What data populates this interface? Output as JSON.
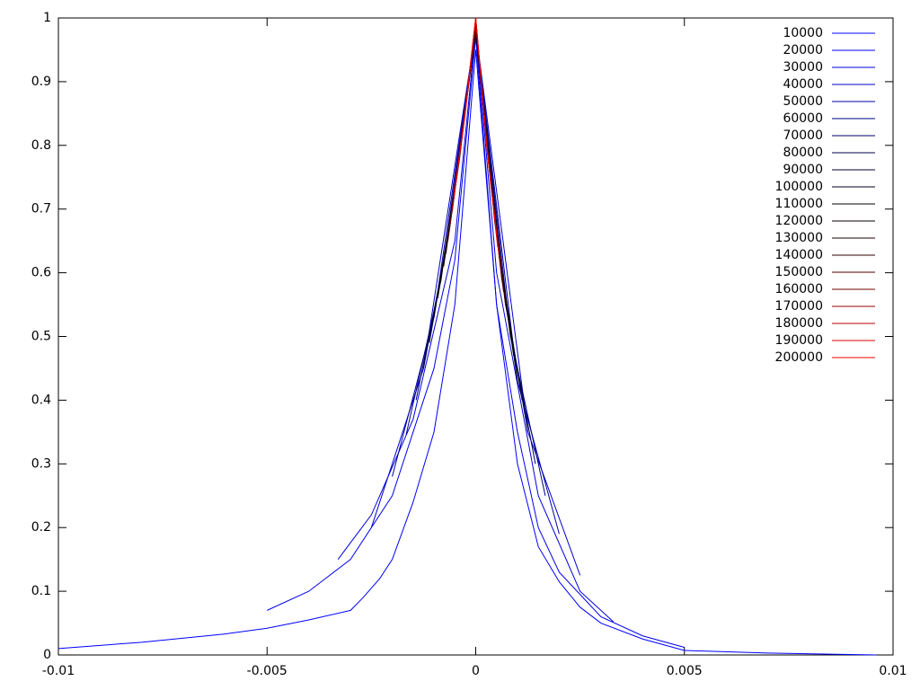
{
  "chart_data": {
    "type": "line",
    "xlim": [
      -0.01,
      0.01
    ],
    "ylim": [
      0,
      1
    ],
    "xticks": [
      -0.01,
      -0.005,
      0,
      0.005,
      0.01
    ],
    "yticks": [
      0,
      0.1,
      0.2,
      0.3,
      0.4,
      0.5,
      0.6,
      0.7,
      0.8,
      0.9,
      1
    ],
    "legend": "top-right",
    "series": [
      {
        "name": "10000",
        "color": "#0000ff",
        "x": [
          -0.01,
          -0.008,
          -0.006,
          -0.005,
          -0.004,
          -0.003,
          -0.0027,
          -0.0023,
          -0.002,
          -0.0015,
          -0.001,
          -0.0005,
          0,
          0.0005,
          0.001,
          0.0015,
          0.002,
          0.0025,
          0.003,
          0.004,
          0.005,
          0.007,
          0.0096
        ],
        "values": [
          0.01,
          0.02,
          0.033,
          0.042,
          0.055,
          0.07,
          0.09,
          0.12,
          0.15,
          0.24,
          0.35,
          0.55,
          0.95,
          0.55,
          0.3,
          0.17,
          0.115,
          0.075,
          0.05,
          0.025,
          0.007,
          0.003,
          0
        ]
      },
      {
        "name": "20000",
        "color": "#0000ee",
        "x": [
          -0.005,
          -0.004,
          -0.003,
          -0.002,
          -0.001,
          -0.0005,
          0,
          0.0005,
          0.001,
          0.0015,
          0.002,
          0.003,
          0.004,
          0.005
        ],
        "values": [
          0.07,
          0.1,
          0.15,
          0.25,
          0.45,
          0.62,
          0.97,
          0.55,
          0.35,
          0.2,
          0.13,
          0.06,
          0.03,
          0.012
        ]
      },
      {
        "name": "30000",
        "color": "#0000dd",
        "x": [
          -0.0033,
          -0.0025,
          -0.0015,
          -0.0005,
          0,
          0.0005,
          0.0015,
          0.0025,
          0.0033
        ],
        "values": [
          0.15,
          0.22,
          0.37,
          0.65,
          0.98,
          0.6,
          0.25,
          0.1,
          0.052
        ]
      },
      {
        "name": "40000",
        "color": "#0000cc",
        "x": [
          -0.0025,
          -0.00125,
          0,
          0.00125,
          0.0025
        ],
        "values": [
          0.2,
          0.45,
          0.98,
          0.35,
          0.125
        ]
      },
      {
        "name": "50000",
        "color": "#0000aa",
        "x": [
          -0.002,
          -0.001,
          0,
          0.001,
          0.002
        ],
        "values": [
          0.28,
          0.53,
          0.98,
          0.43,
          0.19
        ]
      },
      {
        "name": "60000",
        "color": "#000088",
        "x": [
          -0.001667,
          -0.000833,
          0,
          0.000833,
          0.001667
        ],
        "values": [
          0.346,
          0.588,
          0.98,
          0.5,
          0.25
        ]
      },
      {
        "name": "70000",
        "color": "#000066",
        "x": [
          -0.001429,
          -0.000714,
          0,
          0.000714,
          0.001429
        ],
        "values": [
          0.4,
          0.635,
          0.98,
          0.55,
          0.3
        ]
      },
      {
        "name": "80000",
        "color": "#00004d",
        "x": [
          -0.00125,
          -0.000625,
          0,
          0.000625,
          0.00125
        ],
        "values": [
          0.45,
          0.67,
          0.98,
          0.59,
          0.35
        ]
      },
      {
        "name": "90000",
        "color": "#000033",
        "x": [
          -0.001111,
          -0.000556,
          0,
          0.000556,
          0.001111
        ],
        "values": [
          0.49,
          0.7,
          0.98,
          0.63,
          0.4
        ]
      },
      {
        "name": "100000",
        "color": "#00001a",
        "x": [
          -0.001,
          -0.0005,
          0,
          0.0005,
          0.001
        ],
        "values": [
          0.53,
          0.73,
          0.98,
          0.66,
          0.43
        ]
      },
      {
        "name": "110000",
        "color": "#000000",
        "x": [
          -0.000909,
          -0.000455,
          0,
          0.000455,
          0.000909
        ],
        "values": [
          0.56,
          0.75,
          0.99,
          0.68,
          0.47
        ]
      },
      {
        "name": "120000",
        "color": "#0a0000",
        "x": [
          -0.000833,
          -0.000417,
          0,
          0.000417,
          0.000833
        ],
        "values": [
          0.59,
          0.77,
          0.99,
          0.71,
          0.5
        ]
      },
      {
        "name": "130000",
        "color": "#1a0000",
        "x": [
          -0.000769,
          -0.000385,
          0,
          0.000385,
          0.000769
        ],
        "values": [
          0.61,
          0.78,
          0.99,
          0.73,
          0.53
        ]
      },
      {
        "name": "140000",
        "color": "#330000",
        "x": [
          -0.000714,
          -0.000357,
          0,
          0.000357,
          0.000714
        ],
        "values": [
          0.63,
          0.8,
          0.99,
          0.74,
          0.55
        ]
      },
      {
        "name": "150000",
        "color": "#550000",
        "x": [
          -0.000667,
          -0.000333,
          0,
          0.000333,
          0.000667
        ],
        "values": [
          0.65,
          0.81,
          0.99,
          0.76,
          0.57
        ]
      },
      {
        "name": "160000",
        "color": "#770000",
        "x": [
          -0.000625,
          -0.000313,
          0,
          0.000313,
          0.000625
        ],
        "values": [
          0.67,
          0.82,
          0.99,
          0.77,
          0.59
        ]
      },
      {
        "name": "170000",
        "color": "#990000",
        "x": [
          -0.000588,
          -0.000294,
          0,
          0.000294,
          0.000588
        ],
        "values": [
          0.69,
          0.83,
          1,
          0.78,
          0.61
        ]
      },
      {
        "name": "180000",
        "color": "#bb0000",
        "x": [
          -0.000556,
          -0.000278,
          0,
          0.000278,
          0.000556
        ],
        "values": [
          0.7,
          0.84,
          1,
          0.79,
          0.63
        ]
      },
      {
        "name": "190000",
        "color": "#dd0000",
        "x": [
          -0.000526,
          -0.000263,
          0,
          0.000263,
          0.000526
        ],
        "values": [
          0.72,
          0.85,
          1,
          0.8,
          0.64
        ]
      },
      {
        "name": "200000",
        "color": "#ee0000",
        "x": [
          -0.0005,
          -0.00025,
          0,
          0.00025,
          0.0005
        ],
        "values": [
          0.73,
          0.85,
          1,
          0.81,
          0.66
        ]
      }
    ]
  }
}
